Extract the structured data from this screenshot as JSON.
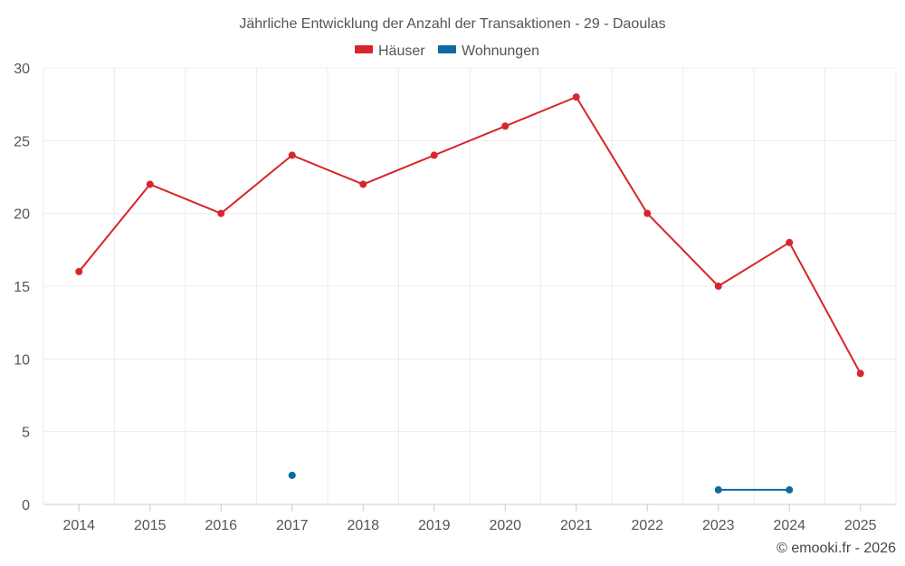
{
  "chart_data": {
    "type": "line",
    "title": "Jährliche Entwicklung der Anzahl der Transaktionen - 29 - Daoulas",
    "categories": [
      "2014",
      "2015",
      "2016",
      "2017",
      "2018",
      "2019",
      "2020",
      "2021",
      "2022",
      "2023",
      "2024",
      "2025"
    ],
    "yticks": [
      "0",
      "5",
      "10",
      "15",
      "20",
      "25",
      "30"
    ],
    "ylim": [
      0,
      30
    ],
    "grid": true,
    "legend_position": "top-center",
    "series": [
      {
        "name": "Häuser",
        "color": "#d7262b",
        "values": [
          16,
          22,
          20,
          24,
          22,
          24,
          26,
          28,
          20,
          15,
          18,
          9
        ]
      },
      {
        "name": "Wohnungen",
        "color": "#0e6aa0",
        "values": [
          null,
          null,
          null,
          2,
          null,
          null,
          null,
          null,
          null,
          1,
          1,
          null
        ]
      }
    ]
  },
  "credit": "© emooki.fr - 2026"
}
